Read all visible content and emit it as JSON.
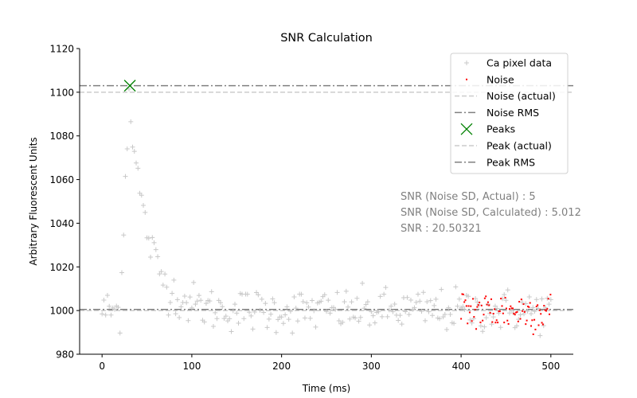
{
  "chart_data": {
    "type": "scatter",
    "title": "SNR Calculation",
    "xlabel": "Time (ms)",
    "ylabel": "Arbitrary Fluorescent Units",
    "xlim": [
      -25,
      525
    ],
    "ylim": [
      980,
      1120
    ],
    "x_ticks": [
      0,
      100,
      200,
      300,
      400,
      500
    ],
    "y_ticks": [
      980,
      1000,
      1020,
      1040,
      1060,
      1080,
      1100,
      1120
    ],
    "grid": false,
    "legend_position": "top-right",
    "series": [
      {
        "name": "Ca pixel data",
        "marker": "plus",
        "color": "#c8c8c8",
        "x_range": [
          0,
          500
        ],
        "step": 2,
        "baseline": 1000,
        "peak_time": 30,
        "peak_amplitude": 100,
        "decay_tau": 20,
        "noise_sd": 5
      },
      {
        "name": "Noise",
        "marker": "point",
        "color": "#ff0000",
        "x_range": [
          400,
          500
        ],
        "step": 1.2,
        "baseline": 1000,
        "noise_sd": 5
      }
    ],
    "reference_lines": [
      {
        "name": "Noise (actual)",
        "y": 1000,
        "style": "dashed",
        "color": "#cccccc"
      },
      {
        "name": "Noise RMS",
        "y": 1000.5,
        "style": "dashdot",
        "color": "#808080"
      },
      {
        "name": "Peak (actual)",
        "y": 1100,
        "style": "dashed",
        "color": "#cccccc"
      },
      {
        "name": "Peak RMS",
        "y": 1103,
        "style": "dashdot",
        "color": "#808080"
      }
    ],
    "peaks": {
      "name": "Peaks",
      "marker": "x",
      "color": "#008000",
      "points": [
        {
          "x": 31,
          "y": 1103
        }
      ]
    },
    "legend_order": [
      "Ca pixel data",
      "Noise",
      "Noise (actual)",
      "Noise RMS",
      "Peaks",
      "Peak (actual)",
      "Peak RMS"
    ],
    "annotations": [
      "SNR (Noise SD, Actual) : 5",
      "SNR (Noise SD, Calculated) : 5.012",
      "SNR : 20.50321"
    ]
  }
}
